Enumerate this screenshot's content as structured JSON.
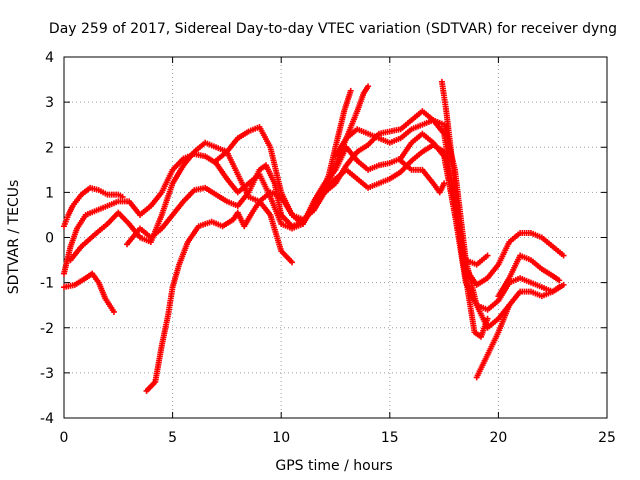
{
  "chart_data": {
    "type": "scatter",
    "title": "Day 259 of 2017, Sidereal Day-to-day VTEC variation (SDTVAR) for receiver dyng",
    "xlabel": "GPS time / hours",
    "ylabel": "SDTVAR / TECUs",
    "xlim": [
      0,
      25
    ],
    "ylim": [
      -4,
      4
    ],
    "x_ticks": [
      "0",
      "5",
      "10",
      "15",
      "20",
      "25"
    ],
    "y_ticks": [
      "-4",
      "-3",
      "-2",
      "-1",
      "0",
      "1",
      "2",
      "3",
      "4"
    ],
    "grid": true,
    "marker": "plus",
    "color": "#ff0000",
    "series": [
      {
        "points": [
          [
            0.0,
            -1.1
          ],
          [
            0.5,
            -1.05
          ],
          [
            1.0,
            -0.9
          ],
          [
            1.3,
            -0.8
          ],
          [
            1.6,
            -1.0
          ],
          [
            1.9,
            -1.35
          ],
          [
            2.3,
            -1.65
          ]
        ]
      },
      {
        "points": [
          [
            0.0,
            0.25
          ],
          [
            0.2,
            0.5
          ],
          [
            0.4,
            0.7
          ],
          [
            0.8,
            0.95
          ],
          [
            1.2,
            1.1
          ],
          [
            1.6,
            1.05
          ],
          [
            2.0,
            0.95
          ],
          [
            2.5,
            0.95
          ],
          [
            2.7,
            0.9
          ]
        ]
      },
      {
        "points": [
          [
            0.0,
            -0.8
          ],
          [
            0.3,
            -0.2
          ],
          [
            0.6,
            0.2
          ],
          [
            1.0,
            0.5
          ],
          [
            1.5,
            0.6
          ],
          [
            2.0,
            0.7
          ],
          [
            2.5,
            0.8
          ],
          [
            3.0,
            0.8
          ],
          [
            3.5,
            0.5
          ],
          [
            4.0,
            0.7
          ],
          [
            4.5,
            1.0
          ],
          [
            5.0,
            1.5
          ],
          [
            5.5,
            1.75
          ],
          [
            6.0,
            1.85
          ],
          [
            6.5,
            1.8
          ],
          [
            7.0,
            1.65
          ],
          [
            7.5,
            1.3
          ],
          [
            8.0,
            1.0
          ],
          [
            8.5,
            1.2
          ],
          [
            9.0,
            1.4
          ],
          [
            9.5,
            0.9
          ],
          [
            10.0,
            0.3
          ],
          [
            10.5,
            0.2
          ],
          [
            11.0,
            0.3
          ],
          [
            11.5,
            0.8
          ],
          [
            12.0,
            1.2
          ],
          [
            12.5,
            1.5
          ],
          [
            13.0,
            2.0
          ],
          [
            13.5,
            1.7
          ],
          [
            14.0,
            1.5
          ],
          [
            14.5,
            1.6
          ],
          [
            15.0,
            1.65
          ],
          [
            15.5,
            1.75
          ],
          [
            16.0,
            2.1
          ],
          [
            16.5,
            2.3
          ],
          [
            17.0,
            2.1
          ],
          [
            17.5,
            1.8
          ],
          [
            18.0,
            0.5
          ],
          [
            18.5,
            -0.5
          ],
          [
            19.0,
            -0.6
          ],
          [
            19.5,
            -0.4
          ]
        ]
      },
      {
        "points": [
          [
            0.3,
            -0.5
          ],
          [
            0.8,
            -0.2
          ],
          [
            1.5,
            0.1
          ],
          [
            2.0,
            0.3
          ],
          [
            2.5,
            0.55
          ],
          [
            3.0,
            0.3
          ],
          [
            3.5,
            0.0
          ],
          [
            4.0,
            -0.1
          ],
          [
            4.5,
            0.5
          ],
          [
            5.0,
            1.2
          ],
          [
            5.5,
            1.6
          ],
          [
            6.0,
            1.9
          ],
          [
            6.5,
            2.1
          ],
          [
            7.0,
            2.0
          ],
          [
            7.5,
            1.9
          ],
          [
            8.0,
            1.4
          ],
          [
            8.5,
            0.9
          ],
          [
            9.0,
            0.8
          ],
          [
            9.5,
            1.0
          ],
          [
            10.0,
            0.9
          ],
          [
            10.5,
            0.5
          ],
          [
            11.0,
            0.3
          ],
          [
            11.5,
            0.7
          ],
          [
            12.0,
            1.0
          ],
          [
            12.5,
            1.2
          ],
          [
            13.0,
            1.6
          ],
          [
            13.5,
            1.9
          ],
          [
            14.0,
            2.05
          ],
          [
            14.5,
            2.3
          ],
          [
            15.0,
            2.35
          ],
          [
            15.5,
            2.4
          ],
          [
            16.0,
            2.6
          ],
          [
            16.5,
            2.8
          ],
          [
            17.0,
            2.6
          ],
          [
            17.5,
            2.3
          ],
          [
            18.0,
            0.8
          ],
          [
            18.5,
            -0.7
          ],
          [
            19.0,
            -1.05
          ],
          [
            19.5,
            -0.9
          ],
          [
            20.0,
            -0.6
          ],
          [
            20.5,
            -0.1
          ],
          [
            21.0,
            0.1
          ],
          [
            21.5,
            0.1
          ],
          [
            22.0,
            0.0
          ],
          [
            22.5,
            -0.2
          ],
          [
            23.0,
            -0.4
          ]
        ]
      },
      {
        "points": [
          [
            2.9,
            -0.15
          ],
          [
            3.5,
            0.2
          ],
          [
            4.0,
            0.0
          ],
          [
            4.5,
            0.2
          ],
          [
            5.0,
            0.5
          ],
          [
            5.5,
            0.8
          ],
          [
            6.0,
            1.05
          ],
          [
            6.5,
            1.1
          ],
          [
            7.0,
            0.95
          ],
          [
            7.5,
            0.8
          ],
          [
            8.0,
            0.7
          ],
          [
            8.5,
            1.0
          ],
          [
            9.0,
            1.5
          ],
          [
            9.3,
            1.6
          ],
          [
            9.7,
            1.2
          ],
          [
            10.0,
            0.5
          ],
          [
            10.5,
            0.25
          ],
          [
            11.0,
            0.35
          ],
          [
            11.5,
            0.7
          ],
          [
            12.0,
            1.0
          ],
          [
            12.5,
            1.3
          ],
          [
            13.0,
            1.5
          ],
          [
            13.5,
            1.3
          ],
          [
            14.0,
            1.1
          ],
          [
            14.5,
            1.2
          ],
          [
            15.0,
            1.3
          ],
          [
            15.5,
            1.45
          ],
          [
            16.0,
            1.7
          ],
          [
            16.5,
            1.9
          ],
          [
            17.0,
            2.05
          ],
          [
            17.5,
            1.9
          ],
          [
            18.0,
            0.5
          ],
          [
            18.5,
            -1.0
          ],
          [
            19.0,
            -1.5
          ],
          [
            19.5,
            -1.6
          ],
          [
            20.0,
            -1.4
          ],
          [
            20.5,
            -1.0
          ],
          [
            21.0,
            -0.9
          ],
          [
            21.5,
            -1.0
          ],
          [
            22.0,
            -1.1
          ],
          [
            22.5,
            -1.2
          ],
          [
            23.0,
            -1.05
          ]
        ]
      },
      {
        "points": [
          [
            7.0,
            1.7
          ],
          [
            7.5,
            1.9
          ],
          [
            8.0,
            2.2
          ],
          [
            8.5,
            2.35
          ],
          [
            9.0,
            2.45
          ],
          [
            9.5,
            2.0
          ],
          [
            10.0,
            1.0
          ],
          [
            10.5,
            0.5
          ],
          [
            11.0,
            0.4
          ],
          [
            11.5,
            0.6
          ],
          [
            12.0,
            1.0
          ],
          [
            12.5,
            1.6
          ],
          [
            13.0,
            2.2
          ],
          [
            13.5,
            2.4
          ],
          [
            14.0,
            2.3
          ],
          [
            14.5,
            2.2
          ],
          [
            15.0,
            2.1
          ],
          [
            15.5,
            2.2
          ],
          [
            16.0,
            2.4
          ],
          [
            16.5,
            2.5
          ],
          [
            17.0,
            2.6
          ],
          [
            17.5,
            2.5
          ],
          [
            18.0,
            1.5
          ],
          [
            18.5,
            -0.5
          ],
          [
            19.0,
            -1.5
          ],
          [
            19.5,
            -2.0
          ],
          [
            20.0,
            -1.8
          ],
          [
            20.5,
            -1.5
          ]
        ]
      },
      {
        "points": [
          [
            3.8,
            -3.4
          ],
          [
            4.2,
            -3.2
          ],
          [
            4.5,
            -2.4
          ],
          [
            4.8,
            -1.7
          ],
          [
            5.0,
            -1.1
          ],
          [
            5.3,
            -0.6
          ],
          [
            5.7,
            -0.1
          ],
          [
            6.2,
            0.25
          ],
          [
            6.8,
            0.35
          ],
          [
            7.3,
            0.25
          ],
          [
            7.8,
            0.4
          ],
          [
            8.0,
            0.55
          ],
          [
            8.3,
            0.25
          ],
          [
            8.6,
            0.5
          ],
          [
            9.0,
            0.8
          ],
          [
            9.5,
            0.5
          ],
          [
            10.0,
            -0.3
          ],
          [
            10.5,
            -0.55
          ]
        ]
      },
      {
        "points": [
          [
            11.8,
            0.9
          ],
          [
            12.2,
            1.4
          ],
          [
            12.6,
            2.2
          ],
          [
            12.9,
            2.8
          ],
          [
            13.2,
            3.25
          ]
        ]
      },
      {
        "points": [
          [
            12.5,
            1.8
          ],
          [
            13.0,
            2.2
          ],
          [
            13.5,
            2.8
          ],
          [
            13.8,
            3.2
          ],
          [
            14.0,
            3.35
          ]
        ]
      },
      {
        "points": [
          [
            17.4,
            3.45
          ],
          [
            17.6,
            2.8
          ],
          [
            17.8,
            2.0
          ],
          [
            18.0,
            1.0
          ],
          [
            18.3,
            -0.3
          ],
          [
            18.6,
            -1.2
          ],
          [
            18.9,
            -2.1
          ],
          [
            19.2,
            -2.2
          ],
          [
            19.5,
            -1.8
          ]
        ]
      },
      {
        "points": [
          [
            19.0,
            -3.1
          ],
          [
            19.5,
            -2.6
          ],
          [
            20.0,
            -2.1
          ],
          [
            20.5,
            -1.5
          ],
          [
            21.0,
            -1.2
          ],
          [
            21.5,
            -1.2
          ],
          [
            22.0,
            -1.3
          ],
          [
            22.5,
            -1.2
          ],
          [
            22.8,
            -1.1
          ]
        ]
      },
      {
        "points": [
          [
            20.0,
            -1.3
          ],
          [
            20.5,
            -0.9
          ],
          [
            21.0,
            -0.4
          ],
          [
            21.5,
            -0.5
          ],
          [
            22.0,
            -0.7
          ],
          [
            22.5,
            -0.85
          ],
          [
            22.8,
            -0.95
          ]
        ]
      },
      {
        "points": [
          [
            15.5,
            1.7
          ],
          [
            16.0,
            1.5
          ],
          [
            16.5,
            1.5
          ],
          [
            17.0,
            1.2
          ],
          [
            17.3,
            1.0
          ],
          [
            17.5,
            1.2
          ]
        ]
      }
    ]
  }
}
